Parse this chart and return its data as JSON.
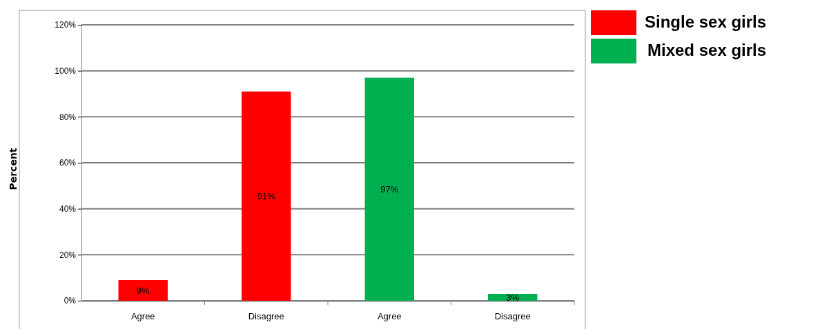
{
  "chart_data": {
    "type": "bar",
    "ylabel": "Percent",
    "categories": [
      "Agree",
      "Disagree",
      "Agree",
      "Disagree"
    ],
    "series": [
      {
        "name": "Single sex girls",
        "color": "#ff0000",
        "values": [
          9,
          91,
          null,
          null
        ],
        "value_labels": [
          "9%",
          "91%",
          null,
          null
        ]
      },
      {
        "name": "Mixed sex girls",
        "color": "#00b050",
        "values": [
          null,
          null,
          97,
          3
        ],
        "value_labels": [
          null,
          null,
          "97%",
          "3%"
        ]
      }
    ],
    "ylim": [
      0,
      120
    ],
    "yticks": [
      {
        "value": 0,
        "label": "0%"
      },
      {
        "value": 20,
        "label": "20%"
      },
      {
        "value": 40,
        "label": "40%"
      },
      {
        "value": 60,
        "label": "60%"
      },
      {
        "value": 80,
        "label": "80%"
      },
      {
        "value": 100,
        "label": "100%"
      },
      {
        "value": 120,
        "label": "120%"
      }
    ],
    "grid": "y",
    "legend": "top right"
  }
}
